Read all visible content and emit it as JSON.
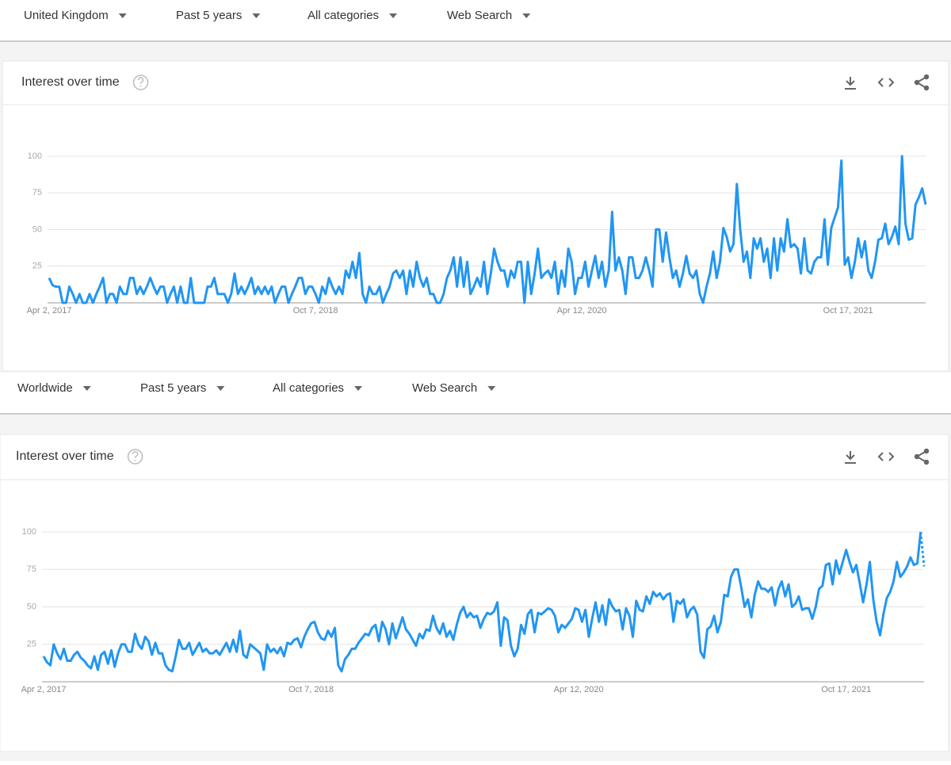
{
  "chart_data": [
    {
      "type": "line",
      "filters": [
        "United Kingdom",
        "Past 5 years",
        "All categories",
        "Web Search"
      ],
      "title": "Interest over time",
      "categories": [
        "Apr 2, 2017",
        null,
        null,
        null,
        null,
        null,
        null,
        null,
        null,
        null,
        null,
        null,
        null,
        null,
        null,
        null,
        null,
        null,
        null,
        null,
        null,
        null,
        null,
        null,
        null,
        null,
        null,
        null,
        null,
        null,
        null,
        null,
        null,
        null,
        null,
        null,
        null,
        null,
        null,
        null,
        null,
        null,
        null,
        null,
        null,
        null,
        null,
        null,
        null,
        null,
        null,
        null,
        null,
        null,
        null,
        null,
        null,
        null,
        null,
        null,
        null,
        null,
        null,
        null,
        null,
        null,
        null,
        null,
        null,
        null,
        null,
        null,
        null,
        null,
        null,
        null,
        null,
        null,
        null,
        "Oct 7, 2018",
        null,
        null,
        null,
        null,
        null,
        null,
        null,
        null,
        null,
        null,
        null,
        null,
        null,
        null,
        null,
        null,
        null,
        null,
        null,
        null,
        null,
        null,
        null,
        null,
        null,
        null,
        null,
        null,
        null,
        null,
        null,
        null,
        null,
        null,
        null,
        null,
        null,
        null,
        null,
        null,
        null,
        null,
        null,
        null,
        null,
        null,
        null,
        null,
        null,
        null,
        null,
        null,
        null,
        null,
        null,
        null,
        null,
        null,
        null,
        null,
        null,
        null,
        null,
        null,
        null,
        null,
        null,
        null,
        null,
        null,
        null,
        null,
        null,
        null,
        null,
        null,
        null,
        null,
        "Apr 12, 2020",
        null,
        null,
        null,
        null,
        null,
        null,
        null,
        null,
        null,
        null,
        null,
        null,
        null,
        null,
        null,
        null,
        null,
        null,
        null,
        null,
        null,
        null,
        null,
        null,
        null,
        null,
        null,
        null,
        null,
        null,
        null,
        null,
        null,
        null,
        null,
        null,
        null,
        null,
        null,
        null,
        null,
        null,
        null,
        null,
        null,
        null,
        null,
        null,
        null,
        null,
        null,
        null,
        null,
        null,
        null,
        null,
        null,
        null,
        null,
        null,
        null,
        null,
        null,
        null,
        null,
        null,
        null,
        null,
        null,
        null,
        null,
        null,
        null,
        null,
        null,
        null,
        null,
        null,
        "Oct 17, 2021",
        null,
        null,
        null,
        null,
        null,
        null,
        null,
        null,
        null,
        null,
        null,
        null,
        null,
        null,
        null,
        null,
        null,
        null,
        null,
        null,
        null,
        null,
        null
      ],
      "values": [
        17,
        12,
        11,
        11,
        0,
        0,
        11,
        6,
        0,
        6,
        0,
        0,
        6,
        0,
        6,
        11,
        17,
        0,
        6,
        6,
        0,
        11,
        6,
        6,
        17,
        17,
        6,
        11,
        6,
        11,
        17,
        11,
        6,
        11,
        11,
        0,
        6,
        11,
        0,
        11,
        0,
        0,
        17,
        0,
        0,
        0,
        0,
        11,
        11,
        17,
        6,
        6,
        6,
        0,
        6,
        20,
        6,
        11,
        6,
        11,
        17,
        6,
        11,
        6,
        11,
        6,
        11,
        0,
        6,
        11,
        11,
        0,
        6,
        11,
        17,
        17,
        6,
        11,
        11,
        6,
        0,
        11,
        6,
        17,
        11,
        6,
        11,
        6,
        22,
        17,
        28,
        17,
        34,
        6,
        0,
        11,
        6,
        6,
        11,
        0,
        6,
        11,
        20,
        22,
        17,
        22,
        6,
        22,
        11,
        28,
        17,
        11,
        17,
        6,
        6,
        0,
        0,
        6,
        17,
        22,
        31,
        11,
        31,
        11,
        28,
        6,
        11,
        17,
        11,
        28,
        6,
        20,
        37,
        28,
        22,
        22,
        11,
        22,
        17,
        28,
        28,
        0,
        28,
        6,
        20,
        37,
        17,
        20,
        22,
        17,
        28,
        6,
        22,
        11,
        37,
        28,
        6,
        17,
        17,
        28,
        11,
        22,
        32,
        17,
        28,
        11,
        22,
        62,
        22,
        31,
        22,
        6,
        31,
        31,
        17,
        17,
        22,
        31,
        22,
        11,
        50,
        50,
        28,
        48,
        31,
        17,
        22,
        11,
        20,
        32,
        20,
        17,
        22,
        6,
        0,
        11,
        20,
        35,
        17,
        28,
        51,
        45,
        35,
        40,
        81,
        50,
        28,
        35,
        17,
        44,
        37,
        44,
        28,
        37,
        17,
        44,
        22,
        44,
        35,
        57,
        38,
        40,
        37,
        20,
        44,
        22,
        20,
        28,
        31,
        31,
        57,
        26,
        51,
        58,
        65,
        97,
        26,
        31,
        17,
        28,
        44,
        31,
        42,
        22,
        17,
        28,
        43,
        44,
        54,
        40,
        45,
        52,
        40,
        100,
        54,
        43,
        44,
        67,
        72,
        78,
        67
      ],
      "color": "#2196f3",
      "ylim": [
        0,
        100
      ],
      "yticks": [
        25,
        50,
        75,
        100
      ],
      "grid": true
    },
    {
      "type": "line",
      "filters": [
        "Worldwide",
        "Past 5 years",
        "All categories",
        "Web Search"
      ],
      "title": "Interest over time",
      "categories": [
        "Apr 2, 2017",
        null,
        null,
        null,
        null,
        null,
        null,
        null,
        null,
        null,
        null,
        null,
        null,
        null,
        null,
        null,
        null,
        null,
        null,
        null,
        null,
        null,
        null,
        null,
        null,
        null,
        null,
        null,
        null,
        null,
        null,
        null,
        null,
        null,
        null,
        null,
        null,
        null,
        null,
        null,
        null,
        null,
        null,
        null,
        null,
        null,
        null,
        null,
        null,
        null,
        null,
        null,
        null,
        null,
        null,
        null,
        null,
        null,
        null,
        null,
        null,
        null,
        null,
        null,
        null,
        null,
        null,
        null,
        null,
        null,
        null,
        null,
        null,
        null,
        null,
        null,
        null,
        null,
        null,
        "Oct 7, 2018",
        null,
        null,
        null,
        null,
        null,
        null,
        null,
        null,
        null,
        null,
        null,
        null,
        null,
        null,
        null,
        null,
        null,
        null,
        null,
        null,
        null,
        null,
        null,
        null,
        null,
        null,
        null,
        null,
        null,
        null,
        null,
        null,
        null,
        null,
        null,
        null,
        null,
        null,
        null,
        null,
        null,
        null,
        null,
        null,
        null,
        null,
        null,
        null,
        null,
        null,
        null,
        null,
        null,
        null,
        null,
        null,
        null,
        null,
        null,
        null,
        null,
        null,
        null,
        null,
        null,
        null,
        null,
        null,
        null,
        null,
        null,
        null,
        null,
        null,
        null,
        null,
        null,
        null,
        "Apr 12, 2020",
        null,
        null,
        null,
        null,
        null,
        null,
        null,
        null,
        null,
        null,
        null,
        null,
        null,
        null,
        null,
        null,
        null,
        null,
        null,
        null,
        null,
        null,
        null,
        null,
        null,
        null,
        null,
        null,
        null,
        null,
        null,
        null,
        null,
        null,
        null,
        null,
        null,
        null,
        null,
        null,
        null,
        null,
        null,
        null,
        null,
        null,
        null,
        null,
        null,
        null,
        null,
        null,
        null,
        null,
        null,
        null,
        null,
        null,
        null,
        null,
        null,
        null,
        null,
        null,
        null,
        null,
        null,
        null,
        null,
        null,
        null,
        null,
        null,
        null,
        null,
        null,
        null,
        null,
        "Oct 17, 2021",
        null,
        null,
        null,
        null,
        null,
        null,
        null,
        null,
        null,
        null,
        null,
        null,
        null,
        null,
        null,
        null,
        null,
        null,
        null,
        null,
        null,
        null,
        null
      ],
      "values": [
        17,
        13,
        11,
        25,
        19,
        15,
        22,
        14,
        14,
        18,
        20,
        16,
        14,
        11,
        9,
        17,
        8,
        18,
        20,
        12,
        21,
        10,
        19,
        25,
        25,
        20,
        20,
        32,
        25,
        22,
        30,
        27,
        18,
        26,
        19,
        19,
        11,
        8,
        7,
        17,
        28,
        22,
        22,
        26,
        18,
        22,
        26,
        20,
        22,
        19,
        19,
        21,
        18,
        22,
        26,
        20,
        28,
        20,
        34,
        18,
        16,
        25,
        23,
        21,
        19,
        8,
        25,
        20,
        22,
        19,
        23,
        17,
        26,
        25,
        28,
        29,
        23,
        30,
        35,
        39,
        40,
        33,
        29,
        28,
        34,
        30,
        36,
        11,
        7,
        15,
        18,
        22,
        22,
        26,
        29,
        32,
        31,
        36,
        38,
        27,
        40,
        35,
        25,
        39,
        29,
        36,
        43,
        35,
        32,
        28,
        24,
        32,
        29,
        35,
        34,
        44,
        36,
        32,
        39,
        30,
        34,
        28,
        38,
        46,
        50,
        43,
        46,
        43,
        44,
        36,
        42,
        46,
        45,
        47,
        53,
        24,
        43,
        41,
        24,
        17,
        22,
        38,
        32,
        45,
        48,
        33,
        46,
        45,
        47,
        49,
        48,
        44,
        33,
        38,
        36,
        39,
        42,
        49,
        48,
        40,
        48,
        30,
        42,
        53,
        40,
        51,
        38,
        55,
        50,
        47,
        48,
        35,
        49,
        44,
        30,
        54,
        48,
        47,
        57,
        52,
        60,
        57,
        59,
        55,
        58,
        59,
        40,
        54,
        52,
        55,
        43,
        48,
        50,
        45,
        20,
        16,
        35,
        37,
        44,
        33,
        40,
        58,
        57,
        70,
        75,
        75,
        63,
        50,
        55,
        43,
        58,
        67,
        62,
        62,
        60,
        63,
        51,
        62,
        67,
        57,
        65,
        50,
        52,
        57,
        48,
        49,
        49,
        42,
        50,
        62,
        64,
        78,
        79,
        65,
        81,
        72,
        80,
        88,
        80,
        73,
        78,
        66,
        53,
        65,
        80,
        55,
        40,
        31,
        45,
        56,
        60,
        67,
        80,
        70,
        73,
        77,
        83,
        78,
        79,
        100,
        77
      ],
      "color": "#2196f3",
      "ylim": [
        0,
        100
      ],
      "yticks": [
        25,
        50,
        75,
        100
      ],
      "grid": true,
      "last_point_partial": true
    }
  ]
}
